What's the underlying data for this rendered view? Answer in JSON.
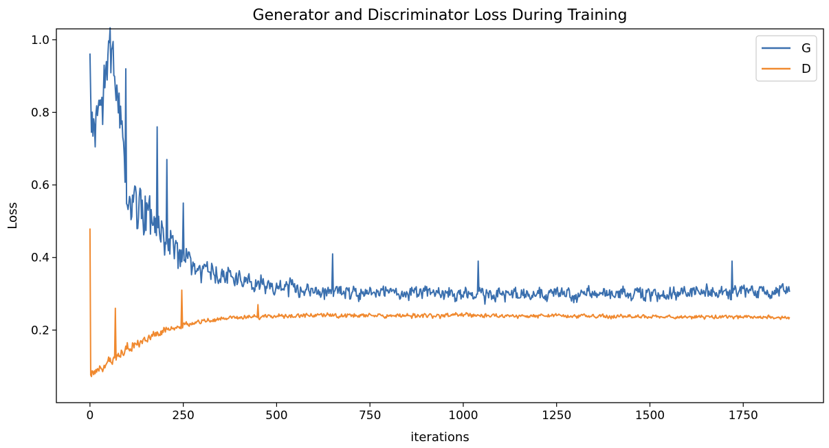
{
  "chart_data": {
    "type": "line",
    "title": "Generator and Discriminator Loss During Training",
    "xlabel": "iterations",
    "ylabel": "Loss",
    "xlim": [
      -90,
      1965
    ],
    "ylim": [
      0.0,
      1.03
    ],
    "xticks": [
      0,
      250,
      500,
      750,
      1000,
      1250,
      1500,
      1750
    ],
    "xtick_labels": [
      "0",
      "250",
      "500",
      "750",
      "1000",
      "1250",
      "1500",
      "1750"
    ],
    "yticks": [
      0.2,
      0.4,
      0.6,
      0.8,
      1.0
    ],
    "ytick_labels": [
      "0.2",
      "0.4",
      "0.6",
      "0.8",
      "1.0"
    ],
    "grid": false,
    "legend": "top-right",
    "x_step": 2,
    "series": [
      {
        "name": "G",
        "color": "#3a6fae",
        "seed": 7,
        "keypoints": [
          [
            0,
            0.96
          ],
          [
            5,
            0.7
          ],
          [
            60,
            0.98
          ],
          [
            100,
            0.58
          ],
          [
            200,
            0.45
          ],
          [
            300,
            0.36
          ],
          [
            500,
            0.32
          ],
          [
            700,
            0.305
          ],
          [
            1000,
            0.3
          ],
          [
            1500,
            0.3
          ],
          [
            1875,
            0.31
          ]
        ],
        "noise_amp": [
          [
            0,
            0.14
          ],
          [
            100,
            0.13
          ],
          [
            200,
            0.08
          ],
          [
            300,
            0.045
          ],
          [
            600,
            0.03
          ],
          [
            1875,
            0.03
          ]
        ],
        "spikes": [
          [
            60,
            0.98
          ],
          [
            37,
            0.93
          ],
          [
            95,
            0.92
          ],
          [
            180,
            0.76
          ],
          [
            205,
            0.67
          ],
          [
            250,
            0.55
          ],
          [
            650,
            0.41
          ],
          [
            1040,
            0.39
          ],
          [
            1720,
            0.39
          ]
        ]
      },
      {
        "name": "D",
        "color": "#f0892f",
        "seed": 13,
        "keypoints": [
          [
            0,
            0.08
          ],
          [
            40,
            0.1
          ],
          [
            100,
            0.15
          ],
          [
            200,
            0.2
          ],
          [
            300,
            0.225
          ],
          [
            400,
            0.235
          ],
          [
            600,
            0.24
          ],
          [
            1000,
            0.24
          ],
          [
            1500,
            0.237
          ],
          [
            1875,
            0.235
          ]
        ],
        "noise_amp": [
          [
            0,
            0.018
          ],
          [
            100,
            0.02
          ],
          [
            300,
            0.01
          ],
          [
            1875,
            0.008
          ]
        ],
        "spikes": [
          [
            0,
            0.48
          ],
          [
            68,
            0.26
          ],
          [
            246,
            0.31
          ],
          [
            450,
            0.27
          ]
        ]
      }
    ]
  }
}
